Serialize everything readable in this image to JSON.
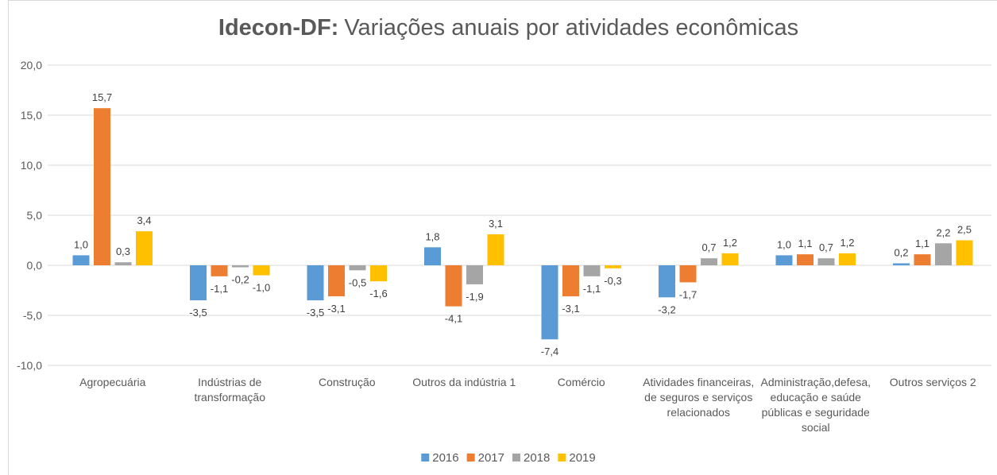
{
  "chart_data": {
    "type": "bar",
    "title_bold": "Idecon-DF:",
    "title": "Variações anuais por atividades econômicas",
    "categories": [
      "Agropecuária",
      "Indústrias de transformação",
      "Construção",
      "Outros da indústria 1",
      "Comércio",
      "Atividades financeiras, de seguros e serviços relacionados",
      "Administração,defesa, educação e saúde públicas e seguridade social",
      "Outros serviços 2"
    ],
    "series": [
      {
        "name": "2016",
        "color": "#5b9bd5",
        "values": [
          1.0,
          -3.5,
          -3.5,
          1.8,
          -7.4,
          -3.2,
          1.0,
          0.2
        ],
        "value_labels": [
          "1,0",
          "-3,5",
          "-3,5",
          "1,8",
          "-7,4",
          "-3,2",
          "1,0",
          "0,2"
        ]
      },
      {
        "name": "2017",
        "color": "#ed7d31",
        "values": [
          15.7,
          -1.1,
          -3.1,
          -4.1,
          -3.1,
          -1.7,
          1.1,
          1.1
        ],
        "value_labels": [
          "15,7",
          "-1,1",
          "-3,1",
          "-4,1",
          "-3,1",
          "-1,7",
          "1,1",
          "1,1"
        ]
      },
      {
        "name": "2018",
        "color": "#a5a5a5",
        "values": [
          0.3,
          -0.2,
          -0.5,
          -1.9,
          -1.1,
          0.7,
          0.7,
          2.2
        ],
        "value_labels": [
          "0,3",
          "-0,2",
          "-0,5",
          "-1,9",
          "-1,1",
          "0,7",
          "0,7",
          "2,2"
        ]
      },
      {
        "name": "2019",
        "color": "#ffc000",
        "values": [
          3.4,
          -1.0,
          -1.6,
          3.1,
          -0.3,
          1.2,
          1.2,
          2.5
        ],
        "value_labels": [
          "3,4",
          "-1,0",
          "-1,6",
          "3,1",
          "-0,3",
          "1,2",
          "1,2",
          "2,5"
        ]
      }
    ],
    "ylim": [
      -10,
      20
    ],
    "yticks": [
      {
        "value": -10,
        "label": "-10,0"
      },
      {
        "value": -5,
        "label": "-5,0"
      },
      {
        "value": 0,
        "label": "0,0"
      },
      {
        "value": 5,
        "label": "5,0"
      },
      {
        "value": 10,
        "label": "10,0"
      },
      {
        "value": 15,
        "label": "15,0"
      },
      {
        "value": 20,
        "label": "20,0"
      }
    ],
    "grid": true,
    "legend": "bottom"
  }
}
